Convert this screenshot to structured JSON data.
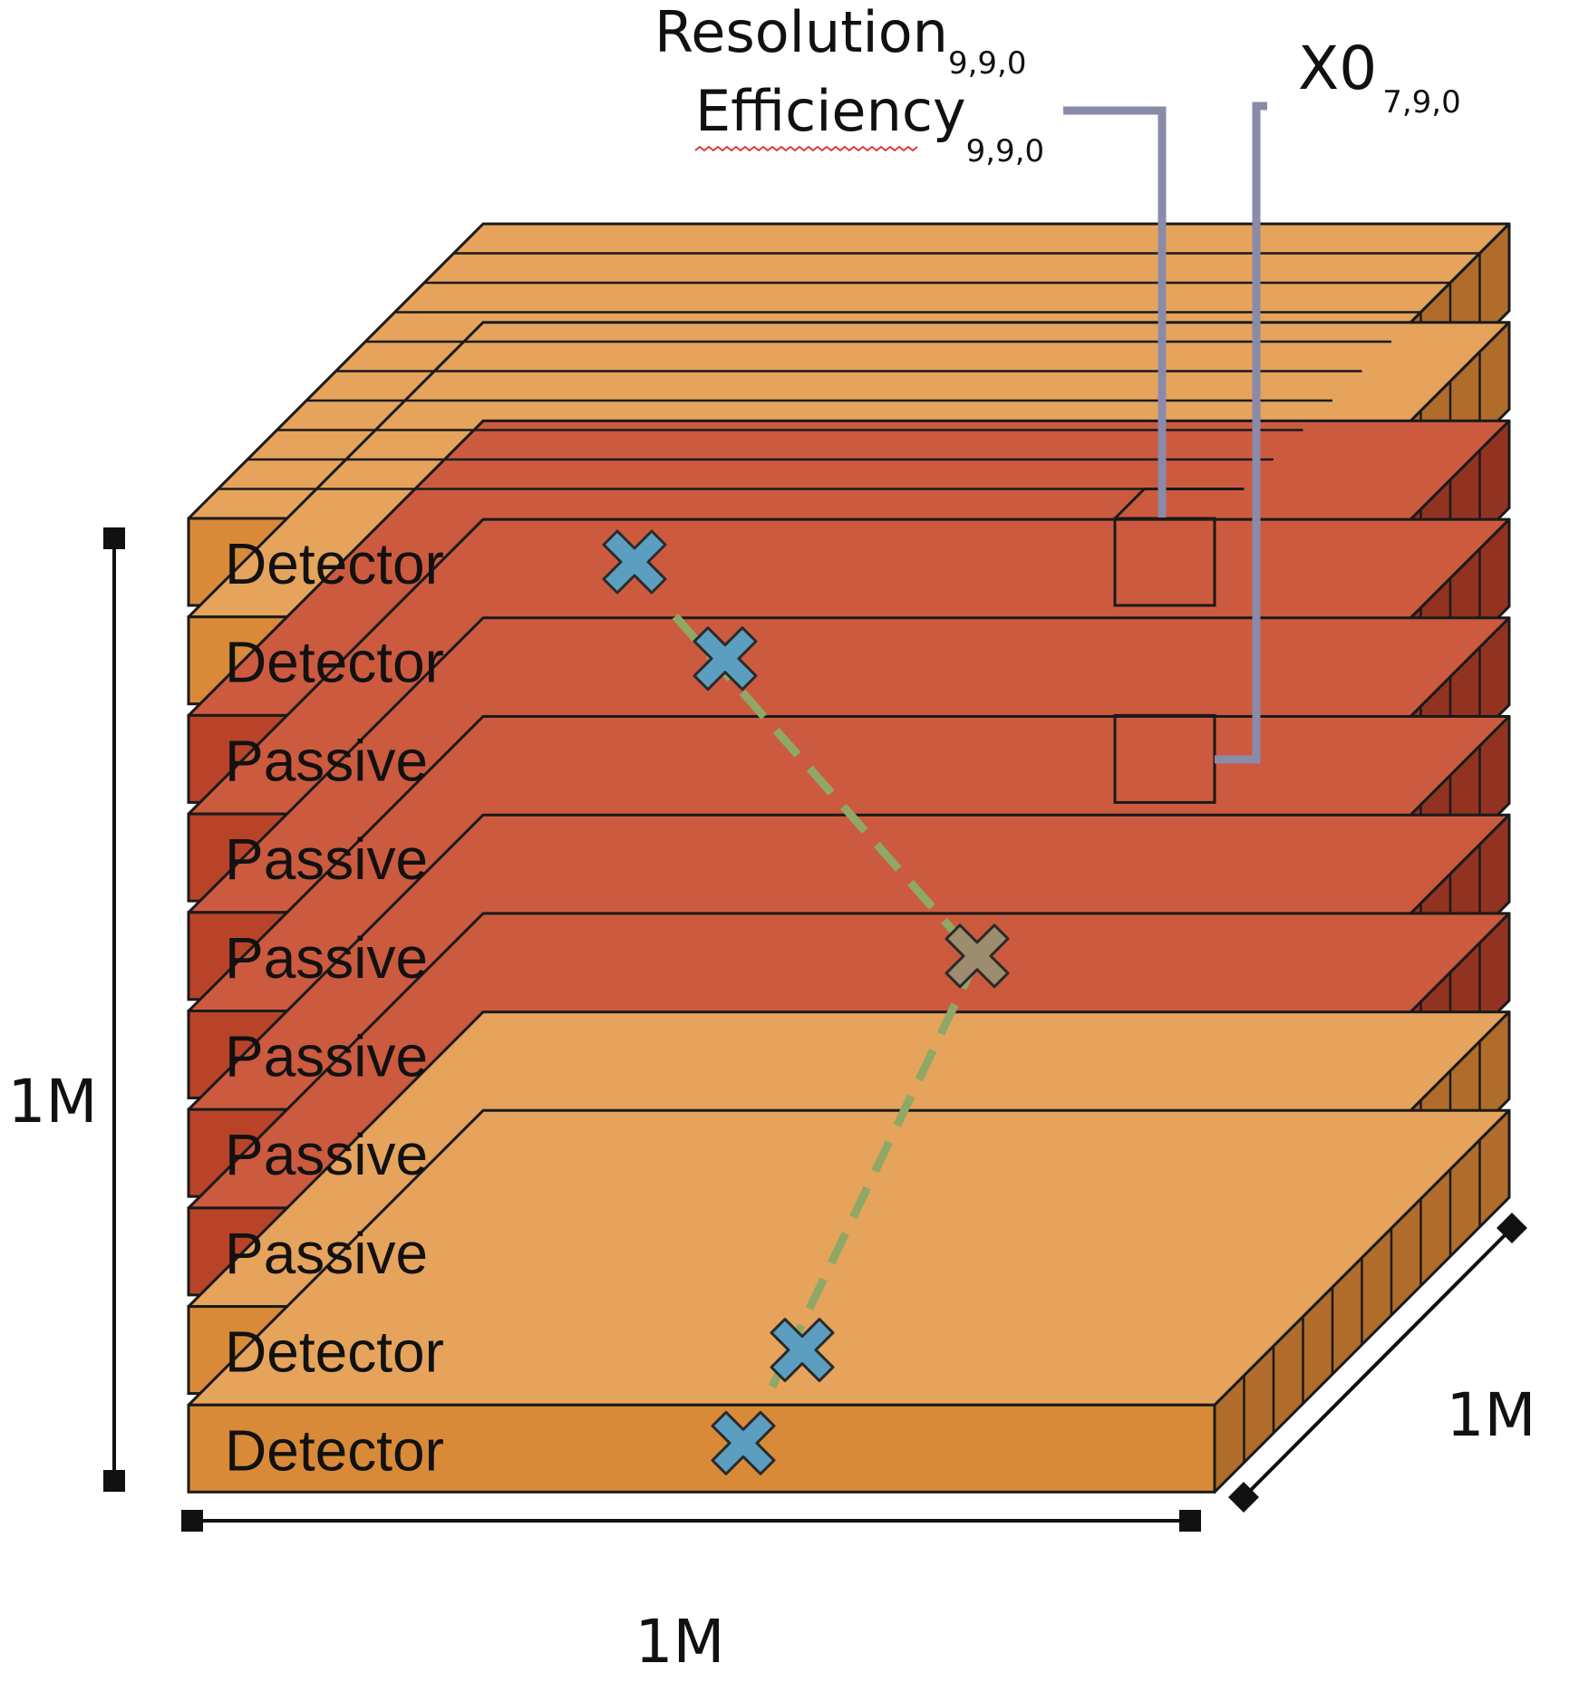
{
  "colors": {
    "detector_front": "#D98A38",
    "detector_top": "#E5A35C",
    "detector_side": "#B06C2A",
    "passive_front": "#B84329",
    "passive_top": "#CC5A3F",
    "passive_side": "#923322",
    "outline": "#1a1a1a",
    "track": "#8FA865",
    "hit": "#5B9EC0",
    "interaction": "#9E8C6E",
    "callout": "#8A8BA8"
  },
  "layers": [
    {
      "type": "detector",
      "label": "Detector"
    },
    {
      "type": "detector",
      "label": "Detector"
    },
    {
      "type": "passive",
      "label": "Passive"
    },
    {
      "type": "passive",
      "label": "Passive"
    },
    {
      "type": "passive",
      "label": "Passive"
    },
    {
      "type": "passive",
      "label": "Passive"
    },
    {
      "type": "passive",
      "label": "Passive"
    },
    {
      "type": "passive",
      "label": "Passive"
    },
    {
      "type": "detector",
      "label": "Detector"
    },
    {
      "type": "detector",
      "label": "Detector"
    }
  ],
  "annotations": {
    "resolution": {
      "main": "Resolution",
      "sub": "9,9,0"
    },
    "efficiency": {
      "main": "Efficiency",
      "sub": "9,9,0"
    },
    "x0": {
      "main": "X0",
      "sub": "7,9,0"
    }
  },
  "dimensions": {
    "height": "1M",
    "width": "1M",
    "depth": "1M"
  },
  "markers": [
    {
      "kind": "hit",
      "layer": 0
    },
    {
      "kind": "hit",
      "layer": 1
    },
    {
      "kind": "interaction",
      "layer": 4
    },
    {
      "kind": "hit",
      "layer": 8
    },
    {
      "kind": "hit",
      "layer": 9
    }
  ]
}
